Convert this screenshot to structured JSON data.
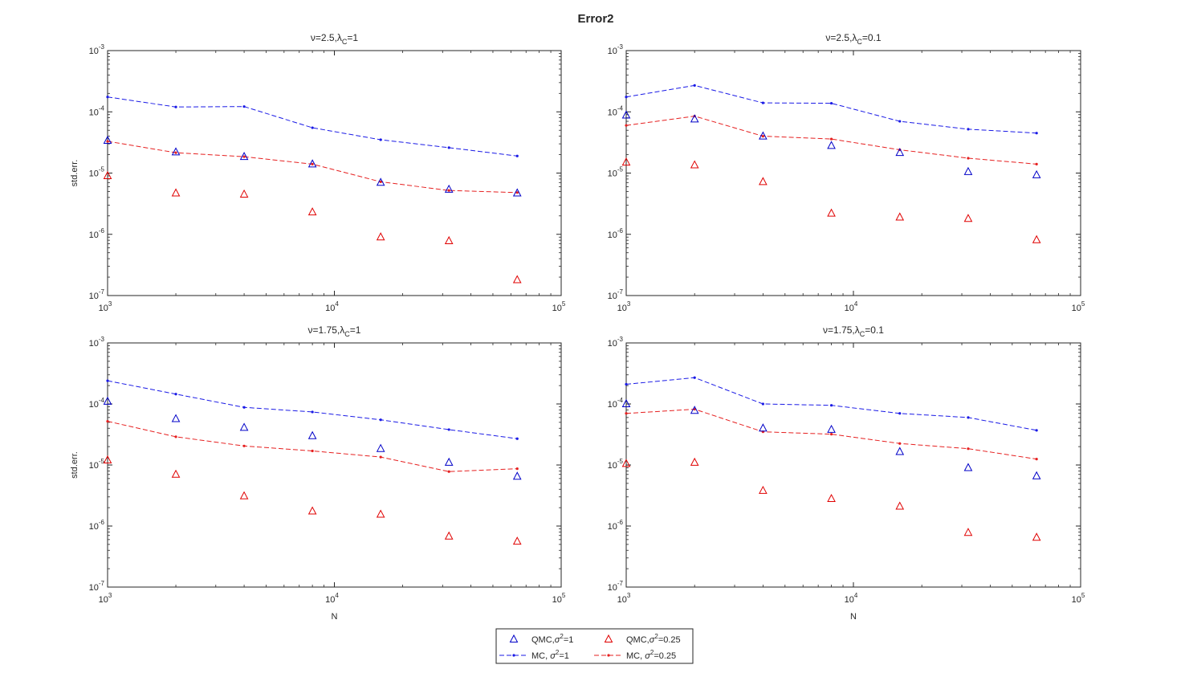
{
  "figure": {
    "title": "Error2",
    "colors": {
      "qmc_blue": "#0000c8",
      "qmc_red": "#e00000",
      "mc_blue": "#1a1ae6",
      "mc_red": "#e62020",
      "axis": "#262626",
      "background": "#ffffff"
    }
  },
  "chart_data": [
    {
      "type": "scatter",
      "title_prefix": "ν=2.5,λ",
      "title_sub": "C",
      "title_suffix": "=1",
      "xlabel": "",
      "ylabel": "std.err.",
      "xscale": "log",
      "yscale": "log",
      "xlim": [
        1000,
        100000
      ],
      "ylim": [
        1e-07,
        0.001
      ],
      "xticks": [
        {
          "base": "10",
          "exp": "3"
        },
        {
          "base": "10",
          "exp": "4"
        },
        {
          "base": "10",
          "exp": "5"
        }
      ],
      "yticks": [
        {
          "base": "10",
          "exp": "-7"
        },
        {
          "base": "10",
          "exp": "-6"
        },
        {
          "base": "10",
          "exp": "-5"
        },
        {
          "base": "10",
          "exp": "-4"
        },
        {
          "base": "10",
          "exp": "-3"
        }
      ],
      "x": [
        1000,
        2000,
        4000,
        8000,
        16000,
        32000,
        64000
      ],
      "series": [
        {
          "name": "QMC,σ²=1",
          "marker": "triangle",
          "color": "#0000c8",
          "values": [
            3.4e-05,
            2.2e-05,
            1.85e-05,
            1.4e-05,
            7e-06,
            5.4e-06,
            4.7e-06
          ]
        },
        {
          "name": "QMC,σ²=0.25",
          "marker": "triangle",
          "color": "#e00000",
          "values": [
            9e-06,
            4.7e-06,
            4.5e-06,
            2.3e-06,
            9e-07,
            7.8e-07,
            1.8e-07
          ]
        },
        {
          "name": "MC, σ²=1",
          "marker": "dashed-dot",
          "color": "#1a1ae6",
          "values": [
            0.000175,
            0.00012,
            0.000122,
            5.5e-05,
            3.5e-05,
            2.6e-05,
            1.9e-05
          ]
        },
        {
          "name": "MC, σ²=0.25",
          "marker": "dashed-dot",
          "color": "#e62020",
          "values": [
            3.3e-05,
            2.15e-05,
            1.85e-05,
            1.4e-05,
            7.2e-06,
            5.2e-06,
            4.8e-06
          ]
        }
      ]
    },
    {
      "type": "scatter",
      "title_prefix": "ν=2.5,λ",
      "title_sub": "C",
      "title_suffix": "=0.1",
      "xlabel": "",
      "ylabel": "",
      "xscale": "log",
      "yscale": "log",
      "xlim": [
        1000,
        100000
      ],
      "ylim": [
        1e-07,
        0.001
      ],
      "xticks": [
        {
          "base": "10",
          "exp": "3"
        },
        {
          "base": "10",
          "exp": "4"
        },
        {
          "base": "10",
          "exp": "5"
        }
      ],
      "yticks": [
        {
          "base": "10",
          "exp": "-7"
        },
        {
          "base": "10",
          "exp": "-6"
        },
        {
          "base": "10",
          "exp": "-5"
        },
        {
          "base": "10",
          "exp": "-4"
        },
        {
          "base": "10",
          "exp": "-3"
        }
      ],
      "x": [
        1000,
        2000,
        4000,
        8000,
        16000,
        32000,
        64000
      ],
      "series": [
        {
          "name": "QMC,σ²=1",
          "marker": "triangle",
          "color": "#0000c8",
          "values": [
            8.8e-05,
            7.6e-05,
            4e-05,
            2.8e-05,
            2.15e-05,
            1.05e-05,
            9.3e-06
          ]
        },
        {
          "name": "QMC,σ²=0.25",
          "marker": "triangle",
          "color": "#e00000",
          "values": [
            1.5e-05,
            1.35e-05,
            7.2e-06,
            2.2e-06,
            1.9e-06,
            1.8e-06,
            8.1e-07
          ]
        },
        {
          "name": "MC, σ²=1",
          "marker": "dashed-dot",
          "color": "#1a1ae6",
          "values": [
            0.000175,
            0.00027,
            0.00014,
            0.000138,
            7e-05,
            5.2e-05,
            4.5e-05
          ]
        },
        {
          "name": "MC, σ²=0.25",
          "marker": "dashed-dot",
          "color": "#e62020",
          "values": [
            6e-05,
            8.5e-05,
            4e-05,
            3.6e-05,
            2.4e-05,
            1.75e-05,
            1.4e-05
          ]
        }
      ]
    },
    {
      "type": "scatter",
      "title_prefix": "ν=1.75,λ",
      "title_sub": "C",
      "title_suffix": "=1",
      "xlabel": "N",
      "ylabel": "std.err.",
      "xscale": "log",
      "yscale": "log",
      "xlim": [
        1000,
        100000
      ],
      "ylim": [
        1e-07,
        0.001
      ],
      "xticks": [
        {
          "base": "10",
          "exp": "3"
        },
        {
          "base": "10",
          "exp": "4"
        },
        {
          "base": "10",
          "exp": "5"
        }
      ],
      "yticks": [
        {
          "base": "10",
          "exp": "-7"
        },
        {
          "base": "10",
          "exp": "-6"
        },
        {
          "base": "10",
          "exp": "-5"
        },
        {
          "base": "10",
          "exp": "-4"
        },
        {
          "base": "10",
          "exp": "-3"
        }
      ],
      "x": [
        1000,
        2000,
        4000,
        8000,
        16000,
        32000,
        64000
      ],
      "series": [
        {
          "name": "QMC,σ²=1",
          "marker": "triangle",
          "color": "#0000c8",
          "values": [
            0.00011,
            5.7e-05,
            4.1e-05,
            3e-05,
            1.85e-05,
            1.1e-05,
            6.5e-06
          ]
        },
        {
          "name": "QMC,σ²=0.25",
          "marker": "triangle",
          "color": "#e00000",
          "values": [
            1.2e-05,
            7e-06,
            3.1e-06,
            1.75e-06,
            1.55e-06,
            6.8e-07,
            5.6e-07
          ]
        },
        {
          "name": "MC, σ²=1",
          "marker": "dashed-dot",
          "color": "#1a1ae6",
          "values": [
            0.00024,
            0.000145,
            8.8e-05,
            7.4e-05,
            5.5e-05,
            3.8e-05,
            2.7e-05
          ]
        },
        {
          "name": "MC, σ²=0.25",
          "marker": "dashed-dot",
          "color": "#e62020",
          "values": [
            5.2e-05,
            2.9e-05,
            2.05e-05,
            1.7e-05,
            1.35e-05,
            7.8e-06,
            8.7e-06
          ]
        }
      ]
    },
    {
      "type": "scatter",
      "title_prefix": "ν=1.75,λ",
      "title_sub": "C",
      "title_suffix": "=0.1",
      "xlabel": "N",
      "ylabel": "",
      "xscale": "log",
      "yscale": "log",
      "xlim": [
        1000,
        100000
      ],
      "ylim": [
        1e-07,
        0.001
      ],
      "xticks": [
        {
          "base": "10",
          "exp": "3"
        },
        {
          "base": "10",
          "exp": "4"
        },
        {
          "base": "10",
          "exp": "5"
        }
      ],
      "yticks": [
        {
          "base": "10",
          "exp": "-7"
        },
        {
          "base": "10",
          "exp": "-6"
        },
        {
          "base": "10",
          "exp": "-5"
        },
        {
          "base": "10",
          "exp": "-4"
        },
        {
          "base": "10",
          "exp": "-3"
        }
      ],
      "x": [
        1000,
        2000,
        4000,
        8000,
        16000,
        32000,
        64000
      ],
      "series": [
        {
          "name": "QMC,σ²=1",
          "marker": "triangle",
          "color": "#0000c8",
          "values": [
            0.0001,
            7.8e-05,
            4e-05,
            3.8e-05,
            1.65e-05,
            9e-06,
            6.6e-06
          ]
        },
        {
          "name": "QMC,σ²=0.25",
          "marker": "triangle",
          "color": "#e00000",
          "values": [
            1.05e-05,
            1.1e-05,
            3.8e-06,
            2.8e-06,
            2.1e-06,
            7.8e-07,
            6.5e-07
          ]
        },
        {
          "name": "MC, σ²=1",
          "marker": "dashed-dot",
          "color": "#1a1ae6",
          "values": [
            0.00021,
            0.00027,
            0.0001,
            9.5e-05,
            7e-05,
            6e-05,
            3.7e-05
          ]
        },
        {
          "name": "MC, σ²=0.25",
          "marker": "dashed-dot",
          "color": "#e62020",
          "values": [
            7e-05,
            8.2e-05,
            3.5e-05,
            3.2e-05,
            2.25e-05,
            1.85e-05,
            1.25e-05
          ]
        }
      ]
    }
  ],
  "legend": {
    "placement": "bottom-center",
    "entries": [
      {
        "name_prefix": "QMC,",
        "sym": "σ",
        "sup": "2",
        "name_suffix": "=1",
        "marker": "triangle",
        "color": "#0000c8"
      },
      {
        "name_prefix": "QMC,",
        "sym": "σ",
        "sup": "2",
        "name_suffix": "=0.25",
        "marker": "triangle",
        "color": "#e00000"
      },
      {
        "name_prefix": "MC, ",
        "sym": "σ",
        "sup": "2",
        "name_suffix": "=1",
        "marker": "dashed-dot",
        "color": "#1a1ae6"
      },
      {
        "name_prefix": "MC, ",
        "sym": "σ",
        "sup": "2",
        "name_suffix": "=0.25",
        "marker": "dashed-dot",
        "color": "#e62020"
      }
    ]
  }
}
